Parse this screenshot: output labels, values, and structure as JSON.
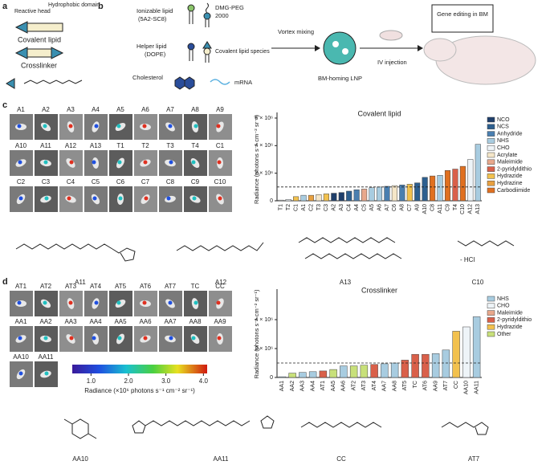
{
  "panel_a": {
    "label": "a",
    "reactive_head": "Reactive head",
    "hydrophobic_domain": "Hydrophobic domain",
    "covalent_lipid": "Covalent lipid",
    "crosslinker": "Crosslinker"
  },
  "panel_b": {
    "label": "b",
    "ionizable_lipid": "Ionizable lipid",
    "ionizable_lipid_id": "(5A2-SC8)",
    "dmg_peg": "DMG-PEG",
    "dmg_peg_num": "2000",
    "helper_lipid": "Helper lipid",
    "helper_lipid_id": "(DOPE)",
    "covalent_species": "Covalent lipid species",
    "cholesterol": "Cholesterol",
    "mrna": "mRNA",
    "vortex": "Vortex mixing",
    "lnp": "BM-homing LNP",
    "iv": "IV injection",
    "gene_editing": "Gene editing in BM"
  },
  "panel_c": {
    "label": "c",
    "images": [
      "A1",
      "A2",
      "A3",
      "A4",
      "A5",
      "A6",
      "A7",
      "A8",
      "A9",
      "A10",
      "A11",
      "A12",
      "A13",
      "T1",
      "T2",
      "T3",
      "T4",
      "C1",
      "C2",
      "C3",
      "C4",
      "C5",
      "C6",
      "C7",
      "C8",
      "C9",
      "C10"
    ],
    "molecules": [
      "A11",
      "A12",
      "A13",
      "C10"
    ],
    "salt": "- HCl"
  },
  "panel_d": {
    "label": "d",
    "images": [
      "AT1",
      "AT2",
      "AT3",
      "AT4",
      "AT5",
      "AT6",
      "AT7",
      "TC",
      "CC",
      "AA1",
      "AA2",
      "AA3",
      "AA4",
      "AA5",
      "AA6",
      "AA7",
      "AA8",
      "AA9",
      "AA10",
      "AA11"
    ],
    "colorbar": {
      "lim": [
        0.5,
        4.1
      ],
      "ticks": [
        {
          "value": 1,
          "label": "1.0"
        },
        {
          "value": 2,
          "label": "2.0"
        },
        {
          "value": 3,
          "label": "3.0"
        },
        {
          "value": 4,
          "label": "4.0"
        }
      ],
      "title": "Radiance (×10⁶ photons s⁻¹ cm⁻² sr⁻¹)"
    },
    "molecules": [
      "AA10",
      "AA11",
      "CC",
      "AT7"
    ]
  },
  "chart_data": [
    {
      "type": "bar",
      "title": "Covalent lipid",
      "y_label": "Radiance (photons s⁻¹ cm⁻² sr⁻¹)",
      "categories": [
        "T1",
        "T2",
        "C1",
        "A1",
        "C2",
        "T3",
        "C3",
        "A2",
        "A3",
        "C4",
        "A4",
        "C5",
        "A5",
        "A6",
        "A7",
        "C6",
        "A8",
        "C7",
        "A9",
        "A10",
        "C8",
        "A11",
        "C9",
        "T4",
        "C10",
        "A12",
        "A13"
      ],
      "values": [
        50000,
        100000,
        300000,
        400000,
        400000,
        450000,
        500000,
        550000,
        600000,
        700000,
        800000,
        850000,
        950000,
        1000000,
        1050000,
        1100000,
        1150000,
        1200000,
        1300000,
        1700000,
        1800000,
        1850000,
        2200000,
        2300000,
        2500000,
        3000000,
        4100000
      ],
      "colors": [
        "#eef4f8",
        "#eef4f8",
        "#f2c14e",
        "#a8cce0",
        "#e8a040",
        "#f5e6c8",
        "#f2c14e",
        "#1f3f6b",
        "#1f3f6b",
        "#2d5f8f",
        "#4a7fb0",
        "#e8a88c",
        "#a8cce0",
        "#a8cce0",
        "#4a7fb0",
        "#f5e6c8",
        "#4a7fb0",
        "#f2c14e",
        "#2d5f8f",
        "#2d5f8f",
        "#e07020",
        "#a8cce0",
        "#e07020",
        "#d9604a",
        "#e07020",
        "#eef4f8",
        "#a8cce0"
      ],
      "ylim": [
        0,
        6000000
      ],
      "yticks": [
        0,
        {
          "value": 2000000,
          "label": "2 × 10⁶"
        },
        {
          "value": 4000000,
          "label": "4 × 10⁶"
        },
        {
          "value": 6000000,
          "label": "6 × 10⁶"
        }
      ],
      "threshold": 1000000,
      "legend": [
        {
          "name": "NCO",
          "color": "#1f3f6b"
        },
        {
          "name": "NCS",
          "color": "#2d5f8f"
        },
        {
          "name": "Anhydride",
          "color": "#4a7fb0"
        },
        {
          "name": "NHS",
          "color": "#a8cce0"
        },
        {
          "name": "CHO",
          "color": "#eef4f8"
        },
        {
          "name": "Acrylate",
          "color": "#f5e6c8"
        },
        {
          "name": "Maleimide",
          "color": "#e8a88c"
        },
        {
          "name": "2-pyridyldithio",
          "color": "#d9604a"
        },
        {
          "name": "Hydrazide",
          "color": "#f2c14e"
        },
        {
          "name": "Hydrazine",
          "color": "#e8a040"
        },
        {
          "name": "Carbodiimide",
          "color": "#e07020"
        }
      ]
    },
    {
      "type": "bar",
      "title": "Crosslinker",
      "y_label": "Radiance (photons s⁻¹ cm⁻² sr⁻¹)",
      "categories": [
        "AA1",
        "AA2",
        "AA3",
        "AA4",
        "AT1",
        "AA5",
        "AA6",
        "AT2",
        "AT3",
        "AT4",
        "AA7",
        "AA8",
        "AT5",
        "TC",
        "AT6",
        "AA9",
        "AT7",
        "CC",
        "AA10",
        "AA11"
      ],
      "values": [
        50000,
        300000,
        350000,
        400000,
        450000,
        550000,
        800000,
        800000,
        850000,
        900000,
        950000,
        1000000,
        1200000,
        1600000,
        1600000,
        1650000,
        1900000,
        3200000,
        3500000,
        4200000
      ],
      "colors": [
        "#a8cce0",
        "#c8e07a",
        "#a8cce0",
        "#a8cce0",
        "#d9604a",
        "#c8e07a",
        "#a8cce0",
        "#c8e07a",
        "#c8e07a",
        "#d9604a",
        "#a8cce0",
        "#a8cce0",
        "#d9604a",
        "#d9604a",
        "#d9604a",
        "#a8cce0",
        "#a8cce0",
        "#f2c14e",
        "#eef4f8",
        "#a8cce0"
      ],
      "ylim": [
        0,
        6000000
      ],
      "yticks": [
        0,
        {
          "value": 2000000,
          "label": "2 × 10⁶"
        },
        {
          "value": 4000000,
          "label": "4 × 10⁶"
        }
      ],
      "threshold": 1000000,
      "legend": [
        {
          "name": "NHS",
          "color": "#a8cce0"
        },
        {
          "name": "CHO",
          "color": "#eef4f8"
        },
        {
          "name": "Maleimide",
          "color": "#e8a88c"
        },
        {
          "name": "2-pyridyldithio",
          "color": "#d9604a"
        },
        {
          "name": "Hydrazide",
          "color": "#f2c14e"
        },
        {
          "name": "Other",
          "color": "#c8e07a"
        }
      ]
    }
  ]
}
